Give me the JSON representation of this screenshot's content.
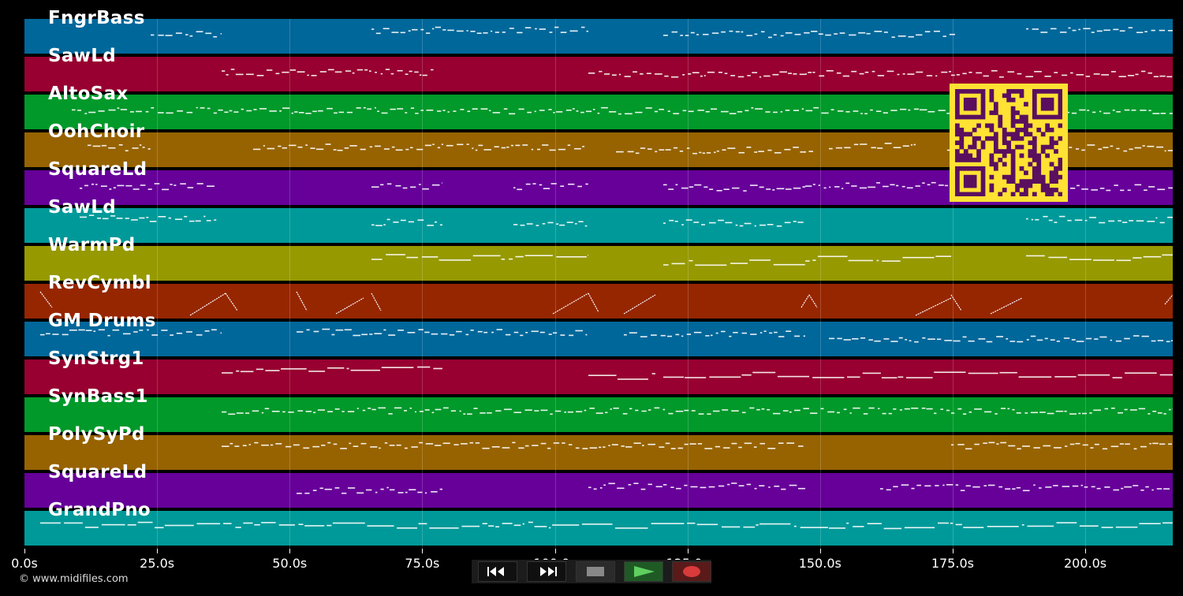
{
  "tracks": [
    {
      "name": "FngrBass",
      "color": "#00679a"
    },
    {
      "name": "SawLd",
      "color": "#970030"
    },
    {
      "name": "AltoSax",
      "color": "#00992a"
    },
    {
      "name": "OohChoir",
      "color": "#976300"
    },
    {
      "name": "SquareLd",
      "color": "#660099"
    },
    {
      "name": "SawLd",
      "color": "#009999"
    },
    {
      "name": "WarmPd",
      "color": "#969900"
    },
    {
      "name": "RevCymbl",
      "color": "#962600"
    },
    {
      "name": "GM Drums",
      "color": "#00679a"
    },
    {
      "name": "SynStrg1",
      "color": "#970030"
    },
    {
      "name": "SynBass1",
      "color": "#00992a"
    },
    {
      "name": "PolySyPd",
      "color": "#976300"
    },
    {
      "name": "SquareLd",
      "color": "#660099"
    },
    {
      "name": "GrandPno",
      "color": "#009999"
    }
  ],
  "timeline": {
    "max_seconds": 216.5,
    "ticks": [
      {
        "value": 0,
        "label": "0.0s"
      },
      {
        "value": 25,
        "label": "25.0s"
      },
      {
        "value": 50,
        "label": "50.0s"
      },
      {
        "value": 75,
        "label": "75.0s"
      },
      {
        "value": 100,
        "label": "100.0s"
      },
      {
        "value": 125,
        "label": "125.0s"
      },
      {
        "value": 150,
        "label": "150.0s"
      },
      {
        "value": 175,
        "label": "175.0s"
      },
      {
        "value": 200,
        "label": "200.0s"
      }
    ]
  },
  "footer": {
    "copyright": "© www.midifiles.com"
  },
  "transport": {
    "rewind_icon": "rewind-icon",
    "fast_forward_icon": "fast-forward-icon",
    "stop_icon": "stop-icon",
    "play_icon": "play-icon",
    "record_icon": "record-icon",
    "colors": {
      "stop": "#888888",
      "play": "#5fcf5f",
      "record": "#d93a3a"
    }
  },
  "qr_code": {
    "colors": {
      "fg": "#5a0f5f",
      "bg": "#ffe233"
    }
  }
}
